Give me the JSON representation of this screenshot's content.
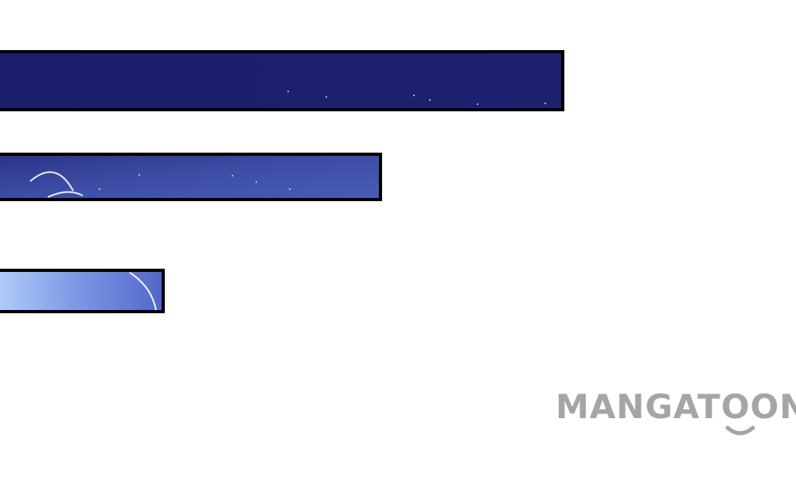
{
  "watermark": {
    "text": "MANGATOON"
  }
}
